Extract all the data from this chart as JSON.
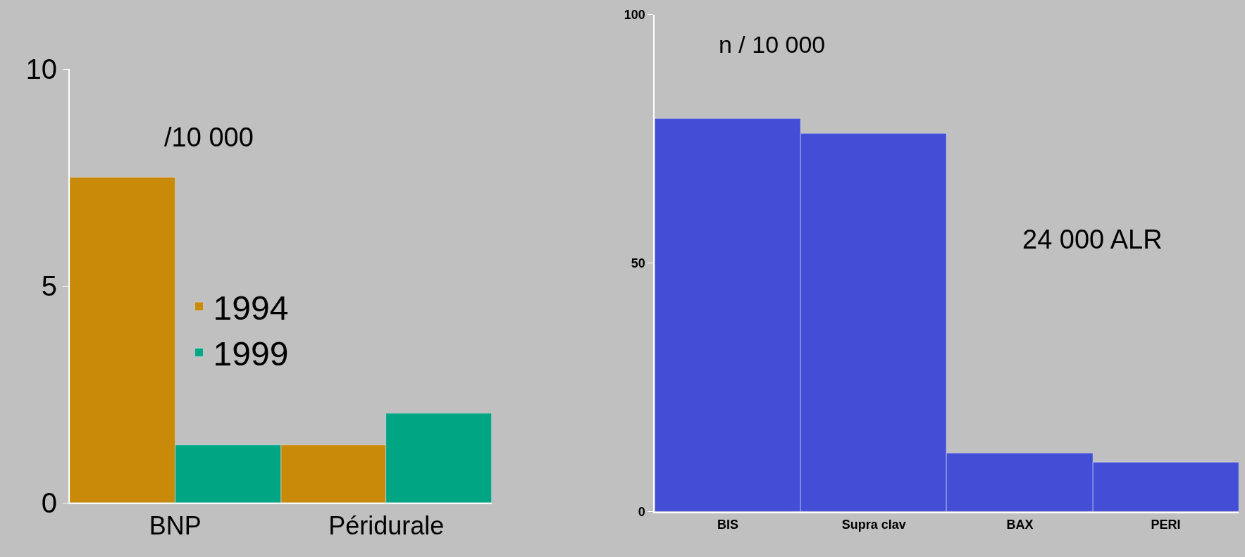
{
  "chart_data": [
    {
      "type": "bar",
      "categories": [
        "BNP",
        "Péridurale"
      ],
      "series": [
        {
          "name": "1994",
          "color": "#c98a0a",
          "values": [
            7.5,
            1.33
          ]
        },
        {
          "name": "1999",
          "color": "#00a584",
          "values": [
            1.33,
            2.07
          ]
        }
      ],
      "ylim": [
        0,
        10
      ],
      "yticks": [
        0,
        5,
        10
      ],
      "grid": false,
      "legend": "center",
      "annotations": [
        "/10 000"
      ]
    },
    {
      "type": "bar",
      "categories": [
        "BIS",
        "Supra clav",
        "BAX",
        "PERI"
      ],
      "values": [
        79.1,
        76.1,
        11.8,
        9.9
      ],
      "color": "#444dd6",
      "ylim": [
        0,
        100
      ],
      "yticks": [
        0,
        50,
        100
      ],
      "grid": false,
      "annotations": [
        "n / 10 000",
        "24 000 ALR"
      ]
    }
  ]
}
